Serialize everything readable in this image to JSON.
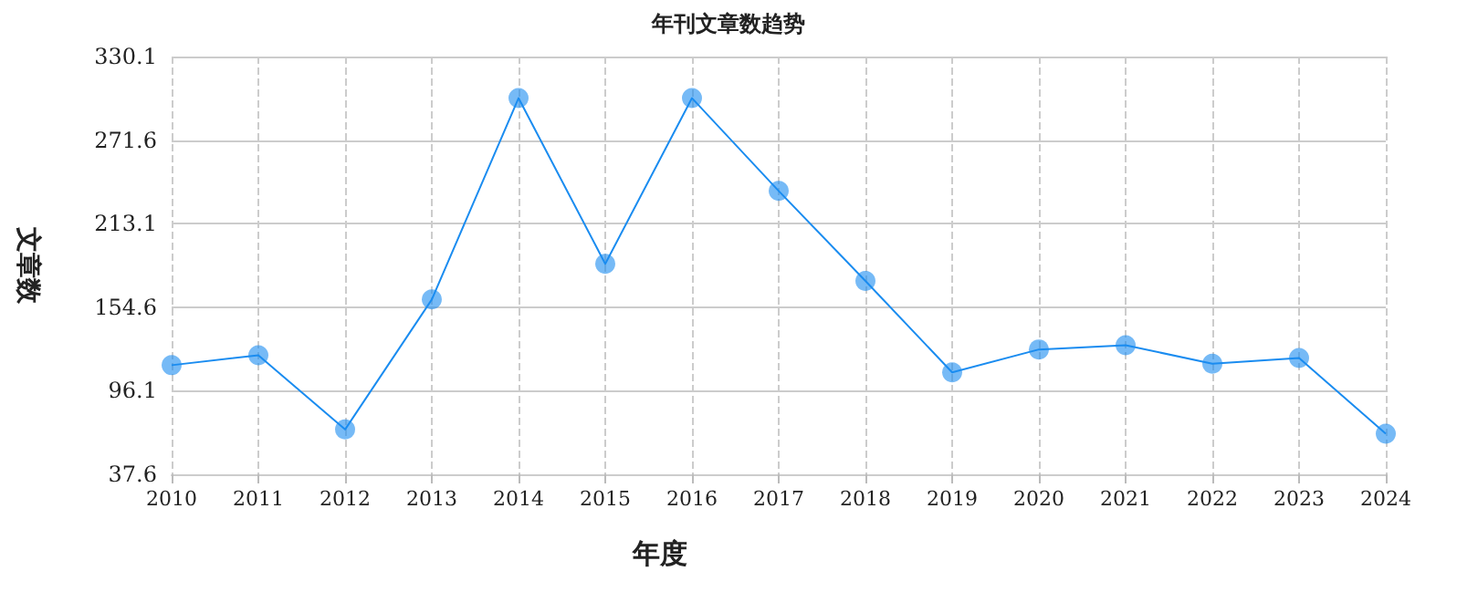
{
  "chart_data": {
    "type": "line",
    "title": "年刊文章数趋势",
    "xlabel": "年度",
    "ylabel": "文章数",
    "categories": [
      "2010",
      "2011",
      "2012",
      "2013",
      "2014",
      "2015",
      "2016",
      "2017",
      "2018",
      "2019",
      "2020",
      "2021",
      "2022",
      "2023",
      "2024"
    ],
    "series": [
      {
        "color": "#1a8cf0",
        "values": [
          114,
          121,
          69,
          160,
          301,
          185,
          301,
          236,
          173,
          109,
          125,
          128,
          115,
          119,
          66
        ]
      }
    ],
    "ylim": [
      37.6,
      330.1
    ],
    "yticks": [
      37.6,
      96.1,
      154.6,
      213.1,
      271.6,
      330.1
    ],
    "grid": true,
    "marker": "circle"
  }
}
